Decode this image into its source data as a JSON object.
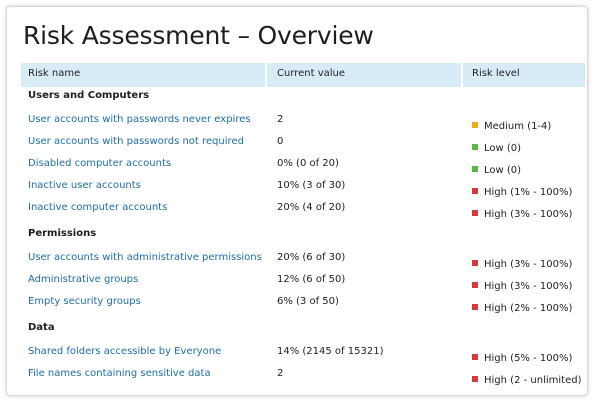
{
  "title": "Risk Assessment – Overview",
  "columns": {
    "name": "Risk name",
    "value": "Current value",
    "level": "Risk level"
  },
  "colors": {
    "medium": "#f0a81c",
    "low": "#58b848",
    "high": "#d73a3a",
    "link": "#1e6ea8",
    "header_bg": "#d8ecf7"
  },
  "sections": [
    {
      "title": "Users and Computers",
      "rows": [
        {
          "name": "User accounts with passwords never expires",
          "value": "2",
          "level": "Medium (1-4)",
          "severity": "medium"
        },
        {
          "name": "User accounts with passwords not required",
          "value": "0",
          "level": "Low (0)",
          "severity": "low"
        },
        {
          "name": "Disabled computer accounts",
          "value": "0% (0 of 20)",
          "level": "Low (0)",
          "severity": "low"
        },
        {
          "name": "Inactive user accounts",
          "value": "10% (3 of 30)",
          "level": "High (1% - 100%)",
          "severity": "high"
        },
        {
          "name": "Inactive computer accounts",
          "value": "20% (4 of 20)",
          "level": "High (3% - 100%)",
          "severity": "high"
        }
      ]
    },
    {
      "title": "Permissions",
      "rows": [
        {
          "name": "User accounts with administrative permissions",
          "value": "20% (6 of 30)",
          "level": "High (3% - 100%)",
          "severity": "high"
        },
        {
          "name": "Administrative groups",
          "value": "12% (6 of 50)",
          "level": "High (3% - 100%)",
          "severity": "high"
        },
        {
          "name": "Empty security groups",
          "value": "6% (3 of 50)",
          "level": "High (2% - 100%)",
          "severity": "high"
        }
      ]
    },
    {
      "title": "Data",
      "rows": [
        {
          "name": "Shared folders accessible by Everyone",
          "value": "14% (2145 of 15321)",
          "level": "High (5% - 100%)",
          "severity": "high"
        },
        {
          "name": "File names containing sensitive data",
          "value": "2",
          "level": "High (2 - unlimited)",
          "severity": "high"
        }
      ]
    }
  ]
}
